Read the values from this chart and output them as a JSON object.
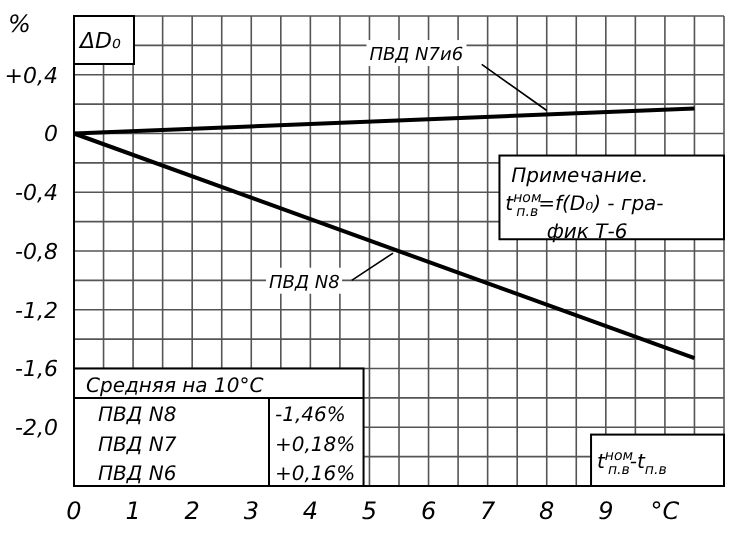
{
  "chart_data": {
    "type": "line",
    "ylabel": "%",
    "xlabel": "t$^{ном}$$_{п.в}$-t$_{п.в}$",
    "x": [
      0,
      10.5
    ],
    "series": [
      {
        "name": "ПВД N7и6",
        "color": "#000000",
        "values": [
          0,
          0.17
        ]
      },
      {
        "name": "ПВД N8",
        "color": "#000000",
        "values": [
          0,
          -1.53
        ]
      }
    ],
    "xlim": [
      0,
      11
    ],
    "ylim": [
      -2.4,
      0.8
    ],
    "xticks": [
      0,
      {
        "value": 0.5,
        "label": null
      },
      1,
      {
        "value": 1.5,
        "label": null
      },
      2,
      {
        "value": 2.5,
        "label": null
      },
      3,
      {
        "value": 3.5,
        "label": null
      },
      4,
      {
        "value": 4.5,
        "label": null
      },
      5,
      {
        "value": 5.5,
        "label": null
      },
      6,
      {
        "value": 6.5,
        "label": null
      },
      7,
      {
        "value": 7.5,
        "label": null
      },
      8,
      {
        "value": 8.5,
        "label": null
      },
      9,
      {
        "value": 9.5,
        "label": null
      },
      {
        "value": 10,
        "label": "°C"
      },
      {
        "value": 10.5,
        "label": null
      }
    ],
    "yticks": [
      {
        "value": 0.6,
        "label": null
      },
      {
        "value": 0.4,
        "label": "+0,4"
      },
      {
        "value": 0.2,
        "label": null
      },
      0,
      {
        "value": -0.2,
        "label": null
      },
      {
        "value": -0.4,
        "label": "-0,4"
      },
      {
        "value": -0.6,
        "label": null
      },
      {
        "value": -0.8,
        "label": "-0,8"
      },
      {
        "value": -1,
        "label": null
      },
      {
        "value": -1.2,
        "label": "-1,2"
      },
      {
        "value": -1.4,
        "label": null
      },
      {
        "value": -1.6,
        "label": "-1,6"
      },
      {
        "value": -1.8,
        "label": null
      },
      {
        "value": -2,
        "label": "-2,0"
      },
      {
        "value": -2.2,
        "label": null
      }
    ],
    "grid": true,
    "marker": "none",
    "line_style": "solid",
    "annotations": [
      "ΔD₀",
      "Примечание.",
      "t$^{ном}$$_{п.в}$=f(D₀) - гра-",
      "фик Т-6",
      "Средняя  на 10°C",
      "ПВД N8",
      "-1,46%",
      "ПВД N7",
      "+0,18%",
      "ПВД N6",
      "+0,16%"
    ]
  }
}
